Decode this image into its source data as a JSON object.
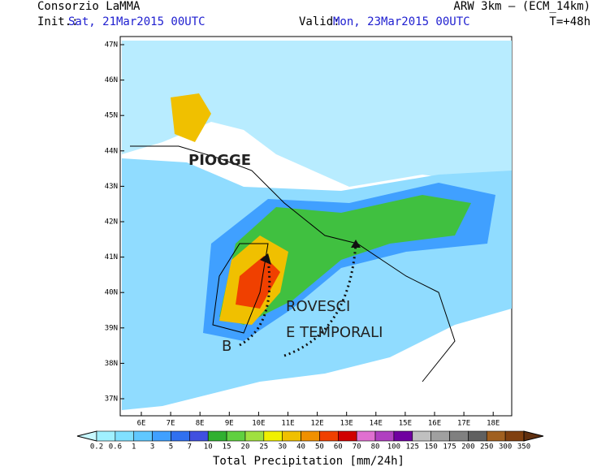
{
  "header": {
    "left_title": "Consorzio LaMMA",
    "init_label": "Init.:",
    "init_value": "Sat, 21Mar2015 00UTC",
    "valid_label": "Valid:",
    "valid_value": "Mon, 23Mar2015 00UTC",
    "model": "ARW 3km – (ECM_14km)",
    "lead": "T=+48h"
  },
  "map": {
    "lat_labels": [
      "47N",
      "46N",
      "45N",
      "44N",
      "43N",
      "42N",
      "41N",
      "40N",
      "39N",
      "38N",
      "37N"
    ],
    "lon_labels": [
      "6E",
      "7E",
      "8E",
      "9E",
      "10E",
      "11E",
      "12E",
      "13E",
      "14E",
      "15E",
      "16E",
      "17E",
      "18E"
    ],
    "annotations": {
      "rain": "PIOGGE",
      "low": "B",
      "showers": "ROVESCI",
      "storms": "E TEMPORALI"
    }
  },
  "colorbar": {
    "labels": [
      "0.2",
      "0.6",
      "1",
      "3",
      "5",
      "7",
      "10",
      "15",
      "20",
      "25",
      "30",
      "40",
      "50",
      "60",
      "70",
      "80",
      "100",
      "125",
      "150",
      "175",
      "200",
      "250",
      "300",
      "350"
    ],
    "colors": [
      "#c8f8ff",
      "#a0f0ff",
      "#80e0ff",
      "#60c8ff",
      "#40a0ff",
      "#3070f0",
      "#4050e0",
      "#30b030",
      "#60d040",
      "#a0e040",
      "#f0f000",
      "#f0c000",
      "#f09000",
      "#f04000",
      "#d00000",
      "#e070d0",
      "#b040c0",
      "#7000a0",
      "#c0c0c0",
      "#a0a0a0",
      "#808080",
      "#606060",
      "#a06020",
      "#804010",
      "#603010"
    ],
    "title": "Total Precipitation [mm/24h]"
  }
}
